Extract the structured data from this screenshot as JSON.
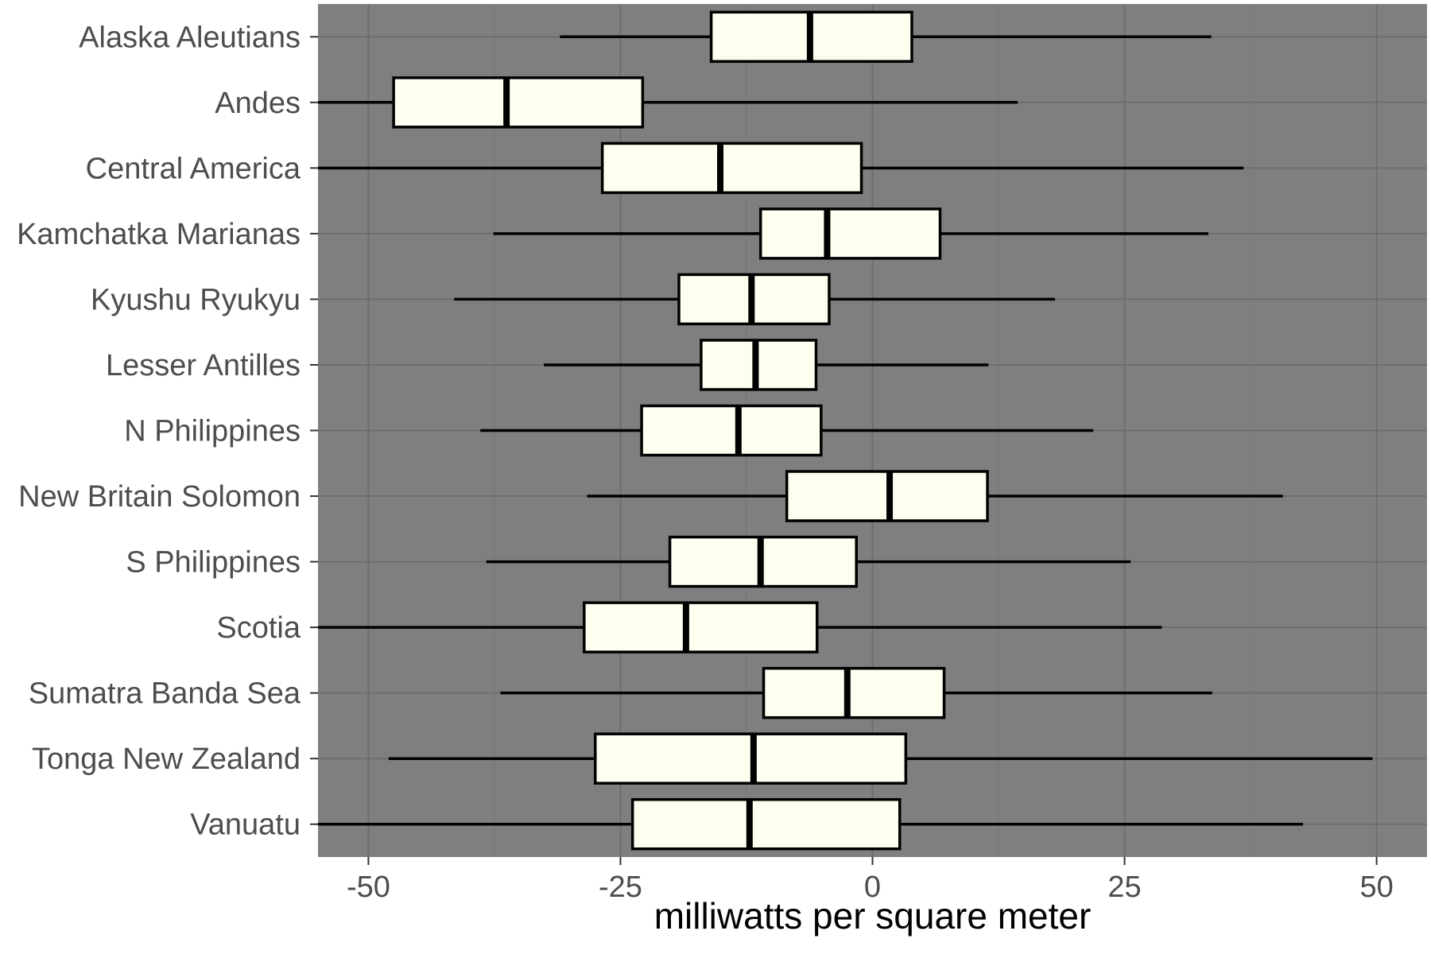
{
  "chart_data": {
    "type": "boxplot",
    "orientation": "horizontal",
    "title": "",
    "xlabel": "milliwatts per square meter",
    "ylabel": "",
    "xlim": [
      -55,
      55
    ],
    "x_ticks": [
      -50,
      -25,
      0,
      25,
      50
    ],
    "x_tick_labels": [
      "-50",
      "-25",
      "0",
      "25",
      "50"
    ],
    "grid": true,
    "legend": "none",
    "colors": {
      "panel_background": "#7f7f7f",
      "grid_major": "#6e6e6e",
      "grid_minor": "#767676",
      "box_fill": "#fffff0",
      "box_stroke": "#000000"
    },
    "categories": [
      "Alaska Aleutians",
      "Andes",
      "Central America",
      "Kamchatka Marianas",
      "Kyushu Ryukyu",
      "Lesser Antilles",
      "N Philippines",
      "New Britain Solomon",
      "S Philippines",
      "Scotia",
      "Sumatra Banda Sea",
      "Tonga New Zealand",
      "Vanuatu"
    ],
    "boxes": [
      {
        "min": -31.0,
        "q1": -16.0,
        "median": -6.2,
        "q3": 3.9,
        "max": 33.6
      },
      {
        "min": -55.0,
        "q1": -47.5,
        "median": -36.3,
        "q3": -22.8,
        "max": 14.4
      },
      {
        "min": -55.0,
        "q1": -26.8,
        "median": -15.1,
        "q3": -1.1,
        "max": 36.8
      },
      {
        "min": -37.6,
        "q1": -11.1,
        "median": -4.5,
        "q3": 6.7,
        "max": 33.3
      },
      {
        "min": -41.5,
        "q1": -19.2,
        "median": -12.0,
        "q3": -4.3,
        "max": 18.1
      },
      {
        "min": -32.6,
        "q1": -17.0,
        "median": -11.6,
        "q3": -5.6,
        "max": 11.5
      },
      {
        "min": -38.9,
        "q1": -22.9,
        "median": -13.3,
        "q3": -5.1,
        "max": 21.9
      },
      {
        "min": -28.3,
        "q1": -8.5,
        "median": 1.7,
        "q3": 11.4,
        "max": 40.7
      },
      {
        "min": -38.3,
        "q1": -20.1,
        "median": -11.1,
        "q3": -1.6,
        "max": 25.6
      },
      {
        "min": -55.0,
        "q1": -28.6,
        "median": -18.5,
        "q3": -5.5,
        "max": 28.7
      },
      {
        "min": -36.9,
        "q1": -10.8,
        "median": -2.5,
        "q3": 7.1,
        "max": 33.7
      },
      {
        "min": -48.0,
        "q1": -27.5,
        "median": -11.8,
        "q3": 3.3,
        "max": 49.6
      },
      {
        "min": -55.0,
        "q1": -23.8,
        "median": -12.2,
        "q3": 2.7,
        "max": 42.7
      }
    ]
  }
}
